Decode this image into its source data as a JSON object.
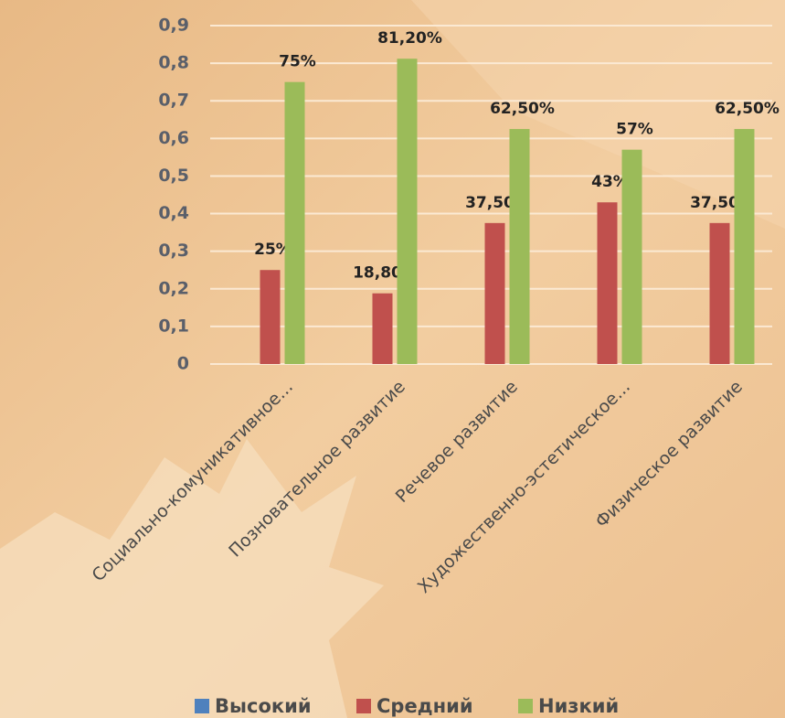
{
  "chart_data": {
    "type": "bar",
    "categories": [
      "Социально-комуникативное...",
      "Позновательное развитие",
      "Речевое развитие",
      "Художественно-эстетическое...",
      "Физическое развитие"
    ],
    "series": [
      {
        "name": "Высокий",
        "color": "#4f81bd",
        "values": [
          null,
          null,
          null,
          null,
          null
        ]
      },
      {
        "name": "Средний",
        "color": "#c0504d",
        "values": [
          0.25,
          0.188,
          0.375,
          0.43,
          0.375
        ],
        "value_labels": [
          "25%",
          "18,80%",
          "37,50%",
          "43%",
          "37,50%"
        ]
      },
      {
        "name": "Низкий",
        "color": "#9bbb59",
        "values": [
          0.75,
          0.812,
          0.625,
          0.57,
          0.625
        ],
        "value_labels": [
          "75%",
          "81,20%",
          "62,50%",
          "57%",
          "62,50%"
        ]
      }
    ],
    "ylim": [
      0,
      0.9
    ],
    "yticks": [
      0,
      {
        "value": 0.1,
        "label": "0,1"
      },
      {
        "value": 0.2,
        "label": "0,2"
      },
      {
        "value": 0.3,
        "label": "0,3"
      },
      {
        "value": 0.4,
        "label": "0,4"
      },
      {
        "value": 0.5,
        "label": "0,5"
      },
      {
        "value": 0.6,
        "label": "0,6"
      },
      {
        "value": 0.7,
        "label": "0,7"
      },
      {
        "value": 0.8,
        "label": "0,8"
      },
      {
        "value": 0.9,
        "label": "0,9"
      }
    ],
    "grid": true,
    "legend": "bottom"
  }
}
